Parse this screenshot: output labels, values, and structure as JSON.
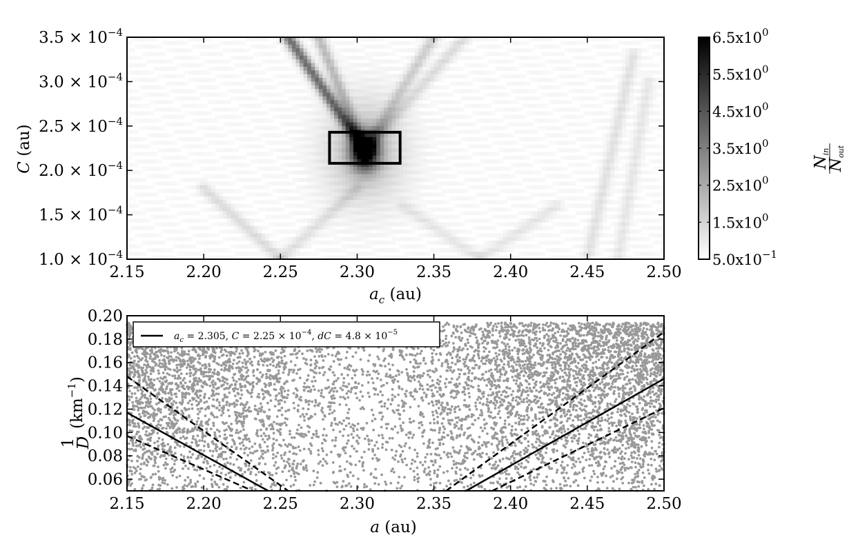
{
  "chart_data": [
    {
      "type": "heatmap",
      "title": "",
      "xlabel": {
        "symbol": "a",
        "sub": "c",
        "unit": "(au)"
      },
      "ylabel": {
        "symbol": "C",
        "unit": "(au)"
      },
      "xlim": [
        2.15,
        2.5
      ],
      "ylim": [
        0.0001,
        0.00035
      ],
      "x_ticks": [
        2.15,
        2.2,
        2.25,
        2.3,
        2.35,
        2.4,
        2.45,
        2.5
      ],
      "x_tick_labels": [
        "2.15",
        "2.20",
        "2.25",
        "2.30",
        "2.35",
        "2.40",
        "2.45",
        "2.50"
      ],
      "y_ticks": [
        0.0001,
        0.00015,
        0.0002,
        0.00025,
        0.0003,
        0.00035
      ],
      "y_tick_labels": [
        {
          "mant": "1.0",
          "exp": "−4"
        },
        {
          "mant": "1.5",
          "exp": "−4"
        },
        {
          "mant": "2.0",
          "exp": "−4"
        },
        {
          "mant": "2.5",
          "exp": "−4"
        },
        {
          "mant": "3.0",
          "exp": "−4"
        },
        {
          "mant": "3.5",
          "exp": "−4"
        }
      ],
      "colorbar": {
        "label": {
          "num": "N",
          "num_sub": "in",
          "den": "N",
          "den_sub": "out"
        },
        "min": 0.5,
        "max": 6.5,
        "ticks": [
          6.5,
          5.5,
          4.5,
          3.5,
          2.5,
          1.5,
          0.5
        ],
        "tick_labels": [
          {
            "mant": "6.5x10",
            "exp": "0"
          },
          {
            "mant": "5.5x10",
            "exp": "0"
          },
          {
            "mant": "4.5x10",
            "exp": "0"
          },
          {
            "mant": "3.5x10",
            "exp": "0"
          },
          {
            "mant": "2.5x10",
            "exp": "0"
          },
          {
            "mant": "1.5x10",
            "exp": "0"
          },
          {
            "mant": "5.0x10",
            "exp": "−1"
          }
        ]
      },
      "features": {
        "peak": {
          "a": 2.305,
          "C": 0.000222,
          "value": 6.5
        },
        "highlight_box": {
          "a_min": 2.282,
          "a_max": 2.328,
          "C_min": 0.000208,
          "C_max": 0.000243
        },
        "v_arms": [
          {
            "a0": 2.305,
            "C0": 0.000222,
            "a1": 2.255,
            "C1": 0.00035,
            "strength": 0.55
          },
          {
            "a0": 2.305,
            "C0": 0.000222,
            "a1": 2.275,
            "C1": 0.00035,
            "strength": 0.25
          },
          {
            "a0": 2.305,
            "C0": 0.000222,
            "a1": 2.35,
            "C1": 0.00035,
            "strength": 0.18
          },
          {
            "a0": 2.305,
            "C0": 0.000222,
            "a1": 2.37,
            "C1": 0.00035,
            "strength": 0.12
          },
          {
            "a0": 2.25,
            "C0": 0.0001,
            "a1": 2.2,
            "C1": 0.00018,
            "strength": 0.12
          },
          {
            "a0": 2.25,
            "C0": 0.0001,
            "a1": 2.3,
            "C1": 0.00018,
            "strength": 0.1
          },
          {
            "a0": 2.38,
            "C0": 0.0001,
            "a1": 2.33,
            "C1": 0.00016,
            "strength": 0.08
          },
          {
            "a0": 2.38,
            "C0": 0.0001,
            "a1": 2.43,
            "C1": 0.00016,
            "strength": 0.08
          },
          {
            "a0": 2.45,
            "C0": 0.0001,
            "a1": 2.48,
            "C1": 0.00033,
            "strength": 0.1
          },
          {
            "a0": 2.47,
            "C0": 0.0001,
            "a1": 2.49,
            "C1": 0.0003,
            "strength": 0.08
          }
        ]
      }
    },
    {
      "type": "scatter",
      "title": "",
      "xlabel": {
        "symbol": "a",
        "unit": "(au)"
      },
      "ylabel": {
        "num": "1",
        "den": "D",
        "unit": "(km",
        "exp": "−1",
        "close": ")"
      },
      "xlim": [
        2.15,
        2.5
      ],
      "ylim": [
        0.05,
        0.2
      ],
      "x_ticks": [
        2.15,
        2.2,
        2.25,
        2.3,
        2.35,
        2.4,
        2.45,
        2.5
      ],
      "x_tick_labels": [
        "2.15",
        "2.20",
        "2.25",
        "2.30",
        "2.35",
        "2.40",
        "2.45",
        "2.50"
      ],
      "y_ticks": [
        0.06,
        0.08,
        0.1,
        0.12,
        0.14,
        0.16,
        0.18,
        0.2
      ],
      "y_tick_labels": [
        "0.06",
        "0.08",
        "0.10",
        "0.12",
        "0.14",
        "0.16",
        "0.18",
        "0.20"
      ],
      "point_color": "#999999",
      "line_color": "#000000",
      "legend": {
        "placement": "top-left",
        "entries": [
          {
            "style": "solid",
            "parts": {
              "a": "a",
              "a_sub": "c",
              "a_val": " = 2.305,  ",
              "C": "C",
              "C_val": " = 2.25 × 10",
              "C_exp": "−4",
              "sep": ",  ",
              "dC": "dC",
              "dC_val": " = 4.8 × 10",
              "dC_exp": "−5"
            }
          }
        ]
      },
      "vshape": {
        "a_c": 2.305,
        "C": 0.000225,
        "dC": 4.8e-05
      },
      "lines": [
        {
          "style": "solid",
          "x": [
            2.15,
            2.242
          ],
          "y": [
            0.117,
            0.05
          ]
        },
        {
          "style": "solid",
          "x": [
            2.371,
            2.5
          ],
          "y": [
            0.05,
            0.146
          ]
        },
        {
          "style": "dashed",
          "x": [
            2.15,
            2.255
          ],
          "y": [
            0.148,
            0.05
          ]
        },
        {
          "style": "dashed",
          "x": [
            2.358,
            2.5
          ],
          "y": [
            0.05,
            0.186
          ]
        },
        {
          "style": "dashed",
          "x": [
            2.15,
            2.232
          ],
          "y": [
            0.097,
            0.05
          ]
        },
        {
          "style": "dashed",
          "x": [
            2.388,
            2.5
          ],
          "y": [
            0.05,
            0.121
          ]
        }
      ],
      "n_points": 7000,
      "y_point_max": 0.194
    }
  ]
}
